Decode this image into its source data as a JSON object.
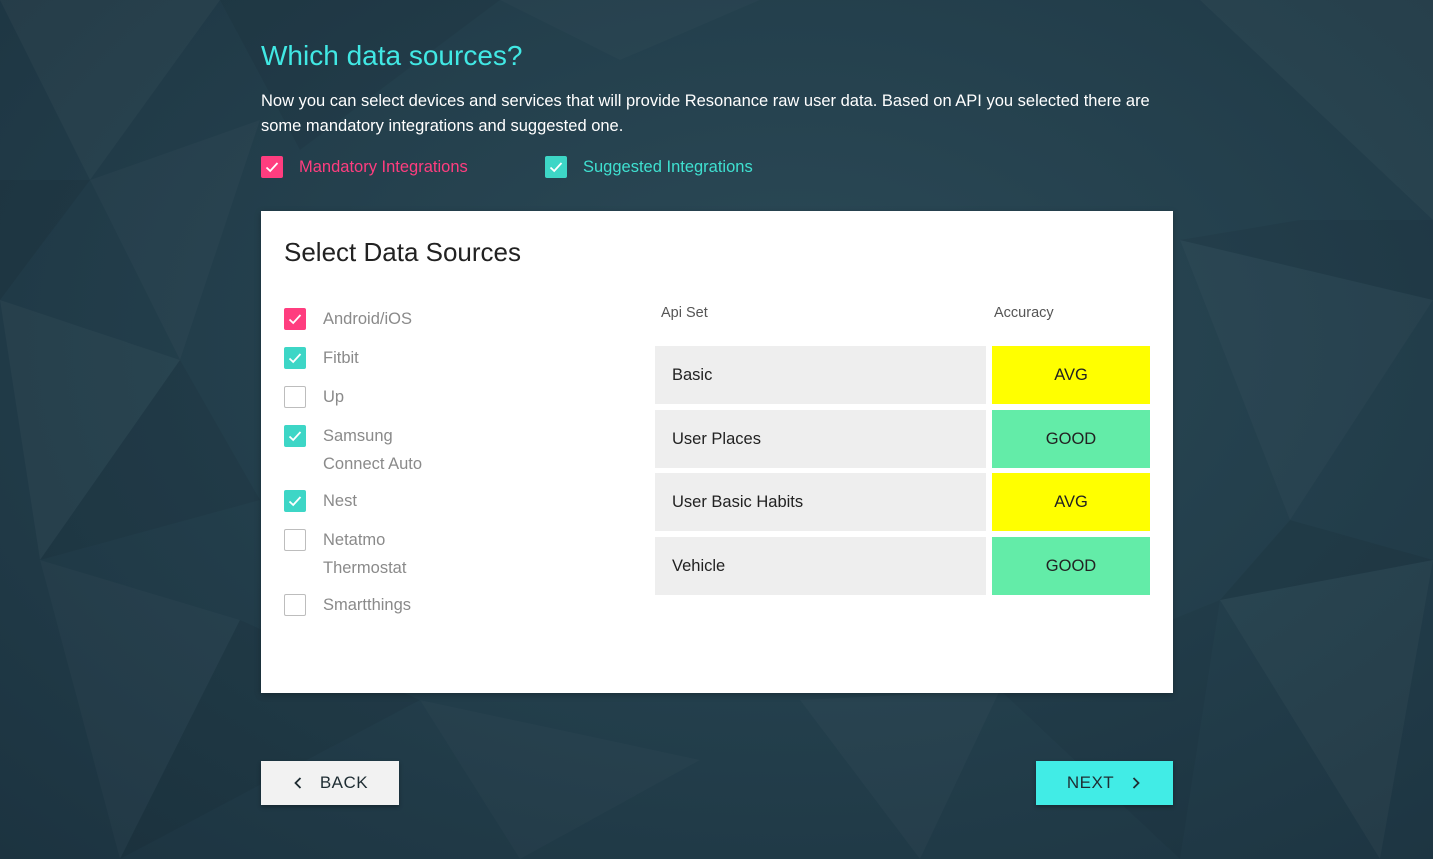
{
  "header": {
    "title": "Which data sources?",
    "description": "Now you can select devices and services that will provide Resonance raw user data. Based on API you selected there are some mandatory integrations and suggested one."
  },
  "legend": {
    "mandatory_label": "Mandatory Integrations",
    "suggested_label": "Suggested Integrations"
  },
  "card": {
    "title": "Select Data Sources"
  },
  "sources": [
    {
      "label": "Android/iOS",
      "state": "mandatory"
    },
    {
      "label": "Fitbit",
      "state": "suggested"
    },
    {
      "label": "Up",
      "state": "unchecked"
    },
    {
      "label": "Samsung Connect Auto",
      "state": "suggested"
    },
    {
      "label": "Nest",
      "state": "suggested"
    },
    {
      "label": "Netatmo Thermostat",
      "state": "unchecked"
    },
    {
      "label": "Smartthings",
      "state": "unchecked"
    }
  ],
  "table": {
    "col_api": "Api Set",
    "col_accuracy": "Accuracy",
    "rows": [
      {
        "api": "Basic",
        "accuracy": "AVG"
      },
      {
        "api": "User Places",
        "accuracy": "GOOD"
      },
      {
        "api": "User Basic Habits",
        "accuracy": "AVG"
      },
      {
        "api": "Vehicle",
        "accuracy": "GOOD"
      }
    ]
  },
  "footer": {
    "back_label": "BACK",
    "next_label": "NEXT"
  },
  "colors": {
    "accent_cyan": "#41e8e4",
    "mandatory_pink": "#ff3d7f",
    "suggested_teal": "#3dd6c6",
    "accuracy_avg": "#ffff00",
    "accuracy_good": "#63eca8"
  },
  "icons": {
    "check": "check-icon",
    "back": "chevron-left-icon",
    "next": "chevron-right-icon"
  }
}
